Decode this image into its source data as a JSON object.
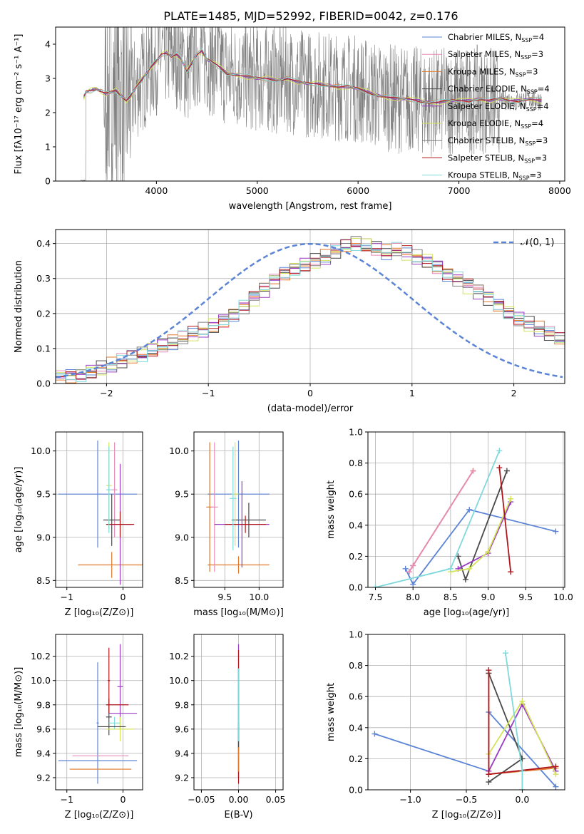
{
  "figure_title": "PLATE=1485, MJD=52992, FIBERID=0042, z=0.176",
  "colors": {
    "Chabrier MILES": "#5b84d6",
    "Salpeter MILES": "#e58ab8",
    "Kroupa MILES": "#e0782a",
    "Chabrier ELODIE": "#4a4a4a",
    "Salpeter ELODIE": "#9a3bc4",
    "Kroupa ELODIE": "#d4e35a",
    "Chabrier STELIB": "#808080",
    "Salpeter STELIB": "#b0151c",
    "Kroupa STELIB": "#7fd9dc",
    "spectrum": "#808080",
    "normal_curve": "#5b84d6"
  },
  "chart_data": [
    {
      "id": "spectrum",
      "type": "line",
      "xlabel": "wavelength [Angstrom, rest frame]",
      "ylabel": "Flux [fλ10⁻¹⁷ erg cm⁻² s⁻¹ A⁻¹]",
      "xlim": [
        3000,
        8050
      ],
      "ylim": [
        0,
        4.5
      ],
      "xticks": [
        4000,
        5000,
        6000,
        7000,
        8000
      ],
      "yticks": [
        0,
        1,
        2,
        3,
        4
      ],
      "model_curve": {
        "x": [
          3280,
          3300,
          3350,
          3400,
          3450,
          3500,
          3550,
          3600,
          3650,
          3700,
          3750,
          3800,
          3850,
          3900,
          3950,
          4000,
          4050,
          4100,
          4150,
          4200,
          4250,
          4300,
          4350,
          4400,
          4450,
          4500,
          4600,
          4700,
          4800,
          4900,
          5000,
          5100,
          5200,
          5300,
          5400,
          5500,
          5600,
          5700,
          5800,
          5900,
          6000,
          6100,
          6200,
          6300,
          6400,
          6500,
          6600,
          6700,
          6800,
          6900,
          7000,
          7100,
          7200,
          7300,
          7400,
          7500,
          7600,
          7700,
          7820
        ],
        "y": [
          2.45,
          2.6,
          2.65,
          2.7,
          2.62,
          2.55,
          2.6,
          2.65,
          2.5,
          2.35,
          2.5,
          2.75,
          2.95,
          3.15,
          3.35,
          3.5,
          3.7,
          3.75,
          3.65,
          3.7,
          3.55,
          3.2,
          3.45,
          3.7,
          3.8,
          3.55,
          3.4,
          3.15,
          3.1,
          3.05,
          3.0,
          3.0,
          2.95,
          3.0,
          2.9,
          2.85,
          2.85,
          2.8,
          2.75,
          2.75,
          2.7,
          2.6,
          2.5,
          2.45,
          2.4,
          2.4,
          2.35,
          2.3,
          2.3,
          2.35,
          2.35,
          2.35,
          2.4,
          2.35,
          2.4,
          2.35,
          2.35,
          2.4,
          2.35
        ]
      },
      "legend": [
        {
          "label": "Chabrier MILES, N",
          "sub": "SSP",
          "suffix": "=4",
          "color": "#5b84d6"
        },
        {
          "label": "Salpeter MILES, N",
          "sub": "SSP",
          "suffix": "=3",
          "color": "#e58ab8"
        },
        {
          "label": "Kroupa MILES, N",
          "sub": "SSP",
          "suffix": "=3",
          "color": "#e0782a"
        },
        {
          "label": "Chabrier ELODIE, N",
          "sub": "SSP",
          "suffix": "=4",
          "color": "#4a4a4a"
        },
        {
          "label": "Salpeter ELODIE, N",
          "sub": "SSP",
          "suffix": "=4",
          "color": "#9a3bc4"
        },
        {
          "label": "Kroupa ELODIE, N",
          "sub": "SSP",
          "suffix": "=4",
          "color": "#d4e35a"
        },
        {
          "label": "Chabrier STELIB, N",
          "sub": "SSP",
          "suffix": "=3",
          "color": "#808080"
        },
        {
          "label": "Salpeter STELIB, N",
          "sub": "SSP",
          "suffix": "=3",
          "color": "#b0151c"
        },
        {
          "label": "Kroupa STELIB, N",
          "sub": "SSP",
          "suffix": "=3",
          "color": "#7fd9dc"
        }
      ],
      "legend_position": "upper right"
    },
    {
      "id": "residuals",
      "type": "step",
      "xlabel": "(data-model)/error",
      "ylabel": "Normed distribution",
      "xlim": [
        -2.5,
        2.5
      ],
      "ylim": [
        0,
        0.44
      ],
      "xticks": [
        -2,
        -1,
        0,
        1,
        2
      ],
      "yticks": [
        0.0,
        0.1,
        0.2,
        0.3,
        0.4
      ],
      "grid": true,
      "bin_width": 0.1,
      "bin_start": -2.5,
      "histogram": [
        0.018,
        0.022,
        0.027,
        0.035,
        0.044,
        0.052,
        0.062,
        0.072,
        0.083,
        0.095,
        0.108,
        0.118,
        0.128,
        0.14,
        0.152,
        0.165,
        0.18,
        0.2,
        0.22,
        0.245,
        0.27,
        0.295,
        0.315,
        0.33,
        0.34,
        0.35,
        0.36,
        0.375,
        0.39,
        0.4,
        0.395,
        0.385,
        0.375,
        0.38,
        0.37,
        0.36,
        0.35,
        0.335,
        0.315,
        0.3,
        0.28,
        0.265,
        0.245,
        0.225,
        0.205,
        0.185,
        0.17,
        0.155,
        0.14,
        0.125,
        0.11,
        0.1,
        0.09,
        0.08,
        0.07,
        0.06,
        0.052,
        0.045,
        0.038,
        0.032
      ],
      "normal_legend": "𝒩(0, 1)",
      "legend_position": "upper right"
    },
    {
      "id": "age_vs_Z",
      "type": "errorbar",
      "xlabel": "Z [log₁₀(Z/Z⊙)]",
      "ylabel": "age  [log₁₀(age/yr)]",
      "xlim": [
        -1.2,
        0.35
      ],
      "ylim": [
        8.42,
        10.22
      ],
      "xticks": [
        -1,
        0
      ],
      "yticks": [
        8.5,
        9.0,
        9.5,
        10.0
      ],
      "grid": true,
      "points": [
        {
          "x": -0.45,
          "xerr": 0.7,
          "y": 9.5,
          "yerr": 0.62,
          "color": "#5b84d6"
        },
        {
          "x": -0.2,
          "xerr": 0.6,
          "y": 8.68,
          "yerr": 0.15,
          "color": "#e0782a"
        },
        {
          "x": -0.15,
          "xerr": 0.05,
          "y": 9.55,
          "yerr": 0.55,
          "color": "#e58ab8"
        },
        {
          "x": -0.2,
          "xerr": 0.15,
          "y": 9.2,
          "yerr": 0.3,
          "color": "#4a4a4a"
        },
        {
          "x": -0.05,
          "xerr": 0.2,
          "y": 9.15,
          "yerr": 0.7,
          "color": "#9a3bc4"
        },
        {
          "x": -0.25,
          "xerr": 0.05,
          "y": 9.6,
          "yerr": 0.5,
          "color": "#d4e35a"
        },
        {
          "x": -0.05,
          "xerr": 0.25,
          "y": 9.15,
          "yerr": 0.15,
          "color": "#b0151c"
        },
        {
          "x": -0.25,
          "xerr": 0.05,
          "y": 9.55,
          "yerr": 0.5,
          "color": "#7fd9dc"
        }
      ]
    },
    {
      "id": "age_vs_mass",
      "type": "errorbar",
      "xlabel": "mass [log₁₀(M/M⊙)]",
      "ylabel": "",
      "xlim": [
        9.05,
        10.35
      ],
      "ylim": [
        8.42,
        10.22
      ],
      "xticks": [
        9.5,
        10.0
      ],
      "yticks": [
        8.5,
        9.0,
        9.5,
        10.0
      ],
      "grid": true,
      "points": [
        {
          "x": 9.7,
          "xerr": 0.45,
          "y": 9.5,
          "yerr": 0.62,
          "color": "#5b84d6"
        },
        {
          "x": 9.7,
          "xerr": 0.45,
          "y": 8.68,
          "yerr": 0.1,
          "color": "#e0782a"
        },
        {
          "x": 9.28,
          "xerr": 0.05,
          "y": 9.35,
          "yerr": 0.75,
          "color": "#e0782a"
        },
        {
          "x": 9.35,
          "xerr": 0.05,
          "y": 9.35,
          "yerr": 0.75,
          "color": "#e58ab8"
        },
        {
          "x": 9.85,
          "xerr": 0.25,
          "y": 9.2,
          "yerr": 0.2,
          "color": "#4a4a4a"
        },
        {
          "x": 9.75,
          "xerr": 0.4,
          "y": 9.15,
          "yerr": 0.5,
          "color": "#9a3bc4"
        },
        {
          "x": 9.65,
          "xerr": 0.05,
          "y": 9.5,
          "yerr": 0.6,
          "color": "#d4e35a"
        },
        {
          "x": 9.8,
          "xerr": 0.3,
          "y": 9.15,
          "yerr": 0.1,
          "color": "#b0151c"
        },
        {
          "x": 9.62,
          "xerr": 0.05,
          "y": 9.45,
          "yerr": 0.6,
          "color": "#7fd9dc"
        }
      ]
    },
    {
      "id": "weight_vs_age",
      "type": "line",
      "xlabel": "age  [log₁₀(age/yr)]",
      "ylabel": "mass weight",
      "xlim": [
        7.4,
        10.02
      ],
      "ylim": [
        0,
        1.0
      ],
      "xticks": [
        7.5,
        8.0,
        8.5,
        9.0,
        9.5,
        10.0
      ],
      "yticks": [
        0.0,
        0.2,
        0.4,
        0.6,
        0.8,
        1.0
      ],
      "grid": true,
      "series": [
        {
          "color": "#5b84d6",
          "x": [
            7.9,
            8.0,
            8.75,
            9.9
          ],
          "y": [
            0.12,
            0.02,
            0.5,
            0.36
          ]
        },
        {
          "color": "#e0782a",
          "x": [
            7.95,
            8.0,
            8.8
          ],
          "y": [
            0.1,
            0.14,
            0.75
          ]
        },
        {
          "color": "#e58ab8",
          "x": [
            7.95,
            8.0,
            8.8
          ],
          "y": [
            0.1,
            0.14,
            0.75
          ]
        },
        {
          "color": "#4a4a4a",
          "x": [
            8.6,
            8.7,
            9.25
          ],
          "y": [
            0.2,
            0.05,
            0.75
          ]
        },
        {
          "color": "#9a3bc4",
          "x": [
            8.6,
            9.0,
            9.3
          ],
          "y": [
            0.12,
            0.22,
            0.55
          ]
        },
        {
          "color": "#d4e35a",
          "x": [
            8.5,
            8.75,
            9.0,
            9.3
          ],
          "y": [
            0.1,
            0.12,
            0.23,
            0.57
          ]
        },
        {
          "color": "#b0151c",
          "x": [
            9.15,
            9.3
          ],
          "y": [
            0.77,
            0.1
          ]
        },
        {
          "color": "#7fd9dc",
          "x": [
            7.5,
            8.5,
            9.15
          ],
          "y": [
            0.0,
            0.12,
            0.88
          ]
        }
      ]
    },
    {
      "id": "mass_vs_Z",
      "type": "errorbar",
      "xlabel": "Z [log₁₀(Z/Z⊙)]",
      "ylabel": "mass [log₁₀(M/M⊙)]",
      "xlim": [
        -1.2,
        0.35
      ],
      "ylim": [
        9.1,
        10.38
      ],
      "xticks": [
        -1,
        0
      ],
      "yticks": [
        9.2,
        9.4,
        9.6,
        9.8,
        10.0,
        10.2
      ],
      "grid": true,
      "points": [
        {
          "x": -0.45,
          "xerr": 0.7,
          "y": 9.34,
          "yerr": 0.0,
          "color": "#5b84d6"
        },
        {
          "x": -0.45,
          "xerr": 0.02,
          "y": 9.65,
          "yerr": 0.5,
          "color": "#5b84d6"
        },
        {
          "x": -0.4,
          "xerr": 0.55,
          "y": 9.27,
          "yerr": 0.0,
          "color": "#e0782a"
        },
        {
          "x": -0.4,
          "xerr": 0.5,
          "y": 9.38,
          "yerr": 0.0,
          "color": "#e58ab8"
        },
        {
          "x": -0.25,
          "xerr": 0.05,
          "y": 9.7,
          "yerr": 0.15,
          "color": "#4a4a4a"
        },
        {
          "x": 0.0,
          "xerr": 0.25,
          "y": 9.73,
          "yerr": 0.0,
          "color": "#9a3bc4"
        },
        {
          "x": -0.05,
          "xerr": 0.05,
          "y": 9.95,
          "yerr": 0.35,
          "color": "#9a3bc4"
        },
        {
          "x": -0.05,
          "xerr": 0.25,
          "y": 9.6,
          "yerr": 0.1,
          "color": "#d4e35a"
        },
        {
          "x": -0.1,
          "xerr": 0.2,
          "y": 9.8,
          "yerr": 0.0,
          "color": "#b0151c"
        },
        {
          "x": -0.25,
          "xerr": 0.02,
          "y": 10.0,
          "yerr": 0.27,
          "color": "#b0151c"
        },
        {
          "x": -0.15,
          "xerr": 0.1,
          "y": 9.65,
          "yerr": 0.05,
          "color": "#7fd9dc"
        },
        {
          "x": -0.2,
          "xerr": 0.25,
          "y": 9.62,
          "yerr": 0.0,
          "color": "#4a4a4a"
        }
      ]
    },
    {
      "id": "mass_vs_ebv",
      "type": "errorbar",
      "xlabel": "E(B-V)",
      "ylabel": "",
      "xlim": [
        -0.06,
        0.06
      ],
      "ylim": [
        9.1,
        10.38
      ],
      "xticks": [
        -0.05,
        0.0,
        0.05
      ],
      "yticks": [
        9.2,
        9.4,
        9.6,
        9.8,
        10.0,
        10.2
      ],
      "grid": true,
      "points": [
        {
          "x": 0.0,
          "xerr": 0.0,
          "y": 9.65,
          "yerr": 0.45,
          "color": "#5b84d6"
        },
        {
          "x": 0.0,
          "xerr": 0.0,
          "y": 9.75,
          "yerr": 0.55,
          "color": "#9a3bc4"
        },
        {
          "x": 0.0,
          "xerr": 0.0,
          "y": 9.7,
          "yerr": 0.55,
          "color": "#b0151c"
        },
        {
          "x": 0.0,
          "xerr": 0.0,
          "y": 9.4,
          "yerr": 0.15,
          "color": "#e0782a"
        },
        {
          "x": 0.0,
          "xerr": 0.0,
          "y": 9.55,
          "yerr": 0.1,
          "color": "#4a4a4a"
        },
        {
          "x": 0.0,
          "xerr": 0.0,
          "y": 9.8,
          "yerr": 0.3,
          "color": "#7fd9dc"
        }
      ]
    },
    {
      "id": "weight_vs_Z",
      "type": "line",
      "xlabel": "Z [log₁₀(Z/Z⊙)]",
      "ylabel": "mass weight",
      "xlim": [
        -1.38,
        0.38
      ],
      "ylim": [
        0,
        1.0
      ],
      "xticks": [
        -1.0,
        -0.5,
        0.0
      ],
      "yticks": [
        0.0,
        0.2,
        0.4,
        0.6,
        0.8,
        1.0
      ],
      "grid": true,
      "series": [
        {
          "color": "#5b84d6",
          "x": [
            -1.32,
            -0.3,
            -0.3,
            0.3
          ],
          "y": [
            0.36,
            0.12,
            0.5,
            0.02
          ]
        },
        {
          "color": "#e0782a",
          "x": [
            -0.3,
            -0.3,
            0.3
          ],
          "y": [
            0.75,
            0.1,
            0.14
          ]
        },
        {
          "color": "#4a4a4a",
          "x": [
            -0.3,
            0.0,
            -0.3
          ],
          "y": [
            0.05,
            0.2,
            0.75
          ]
        },
        {
          "color": "#9a3bc4",
          "x": [
            -0.3,
            0.0,
            0.3
          ],
          "y": [
            0.12,
            0.55,
            0.12
          ]
        },
        {
          "color": "#d4e35a",
          "x": [
            -0.3,
            0.0,
            0.3
          ],
          "y": [
            0.23,
            0.57,
            0.1
          ]
        },
        {
          "color": "#b0151c",
          "x": [
            -0.3,
            -0.3,
            0.3
          ],
          "y": [
            0.77,
            0.1,
            0.15
          ]
        },
        {
          "color": "#7fd9dc",
          "x": [
            -0.15,
            0.0,
            0.0
          ],
          "y": [
            0.88,
            0.12,
            0.0
          ]
        }
      ]
    }
  ]
}
